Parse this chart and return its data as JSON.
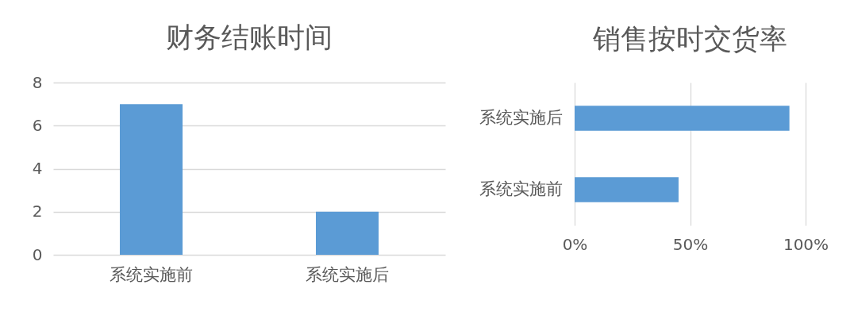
{
  "chart_data": [
    {
      "type": "bar",
      "title": "财务结账时间",
      "categories": [
        "系统实施前",
        "系统实施后"
      ],
      "values": [
        7,
        2
      ],
      "color": "#5b9bd5",
      "ylim": [
        0,
        8
      ],
      "yticks": [
        0,
        2,
        4,
        6,
        8
      ],
      "grid": "y"
    },
    {
      "type": "bar",
      "orientation": "horizontal",
      "title": "销售按时交货率",
      "categories": [
        "系统实施后",
        "系统实施前"
      ],
      "values": [
        93,
        45
      ],
      "color": "#5b9bd5",
      "xlim": [
        0,
        100
      ],
      "xticks": [
        {
          "value": 0,
          "label": "0%"
        },
        {
          "value": 50,
          "label": "50%"
        },
        {
          "value": 100,
          "label": "100%"
        }
      ],
      "grid": "x"
    }
  ]
}
